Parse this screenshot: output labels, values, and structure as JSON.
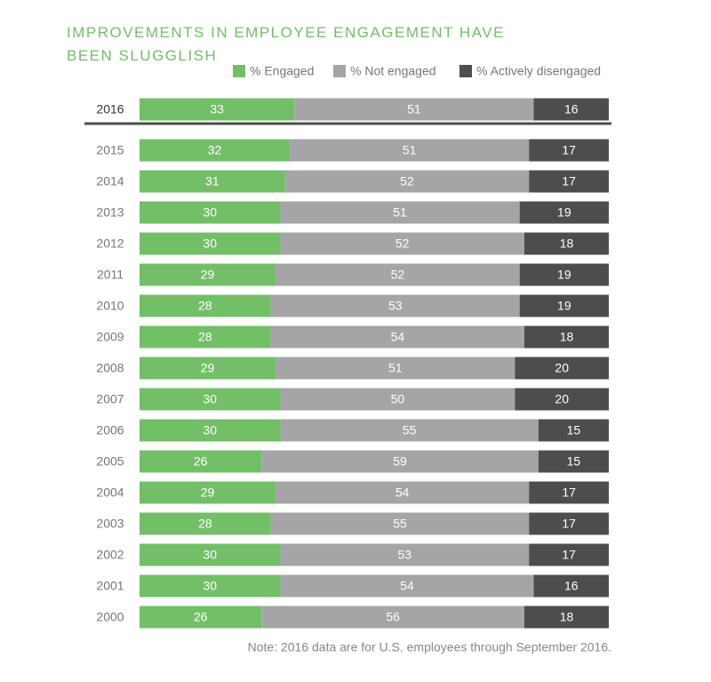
{
  "chart_data": {
    "type": "stacked-barh",
    "title": "IMPROVEMENTS IN EMPLOYEE ENGAGEMENT HAVE BEEN SLUGGLISH",
    "categories": [
      "2016",
      "2015",
      "2014",
      "2013",
      "2012",
      "2011",
      "2010",
      "2009",
      "2008",
      "2007",
      "2006",
      "2005",
      "2004",
      "2003",
      "2002",
      "2001",
      "2000"
    ],
    "series": [
      {
        "name": "% Engaged",
        "color": "#72bf68",
        "values": [
          33,
          32,
          31,
          30,
          30,
          29,
          28,
          28,
          29,
          30,
          30,
          26,
          29,
          28,
          30,
          30,
          26
        ]
      },
      {
        "name": "% Not engaged",
        "color": "#a5a5a7",
        "values": [
          51,
          51,
          52,
          51,
          52,
          52,
          53,
          54,
          51,
          50,
          55,
          59,
          54,
          55,
          53,
          54,
          56
        ]
      },
      {
        "name": "% Actively disengaged",
        "color": "#4d4d4f",
        "values": [
          16,
          17,
          17,
          19,
          18,
          19,
          19,
          18,
          20,
          20,
          15,
          15,
          17,
          17,
          17,
          16,
          18
        ]
      }
    ],
    "xlim": [
      0,
      100
    ],
    "note": "Note: 2016 data are for U.S. employees through September 2016."
  }
}
